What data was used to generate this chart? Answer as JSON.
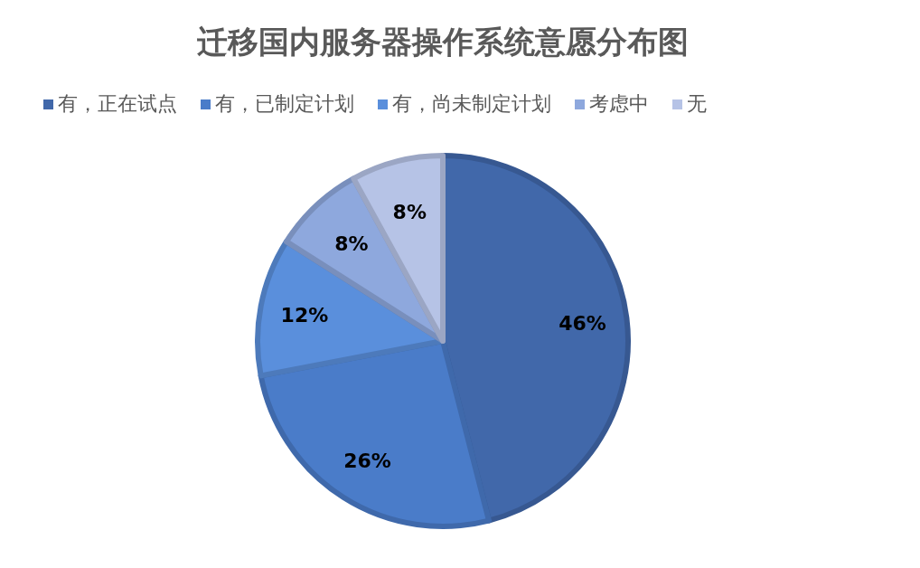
{
  "chart_data": {
    "type": "pie",
    "title": "迁移国内服务器操作系统意愿分布图",
    "categories": [
      "有，正在试点",
      "有，已制定计划",
      "有，尚未制定计划",
      "考虑中",
      "无"
    ],
    "values": [
      46,
      26,
      12,
      8,
      8
    ],
    "colors": [
      "#4168aa",
      "#4a7cc9",
      "#5a8fdc",
      "#8ea8dd",
      "#b6c3e6"
    ],
    "value_labels": [
      "46%",
      "26%",
      "12%",
      "8%",
      "8%"
    ],
    "legend": "top"
  }
}
